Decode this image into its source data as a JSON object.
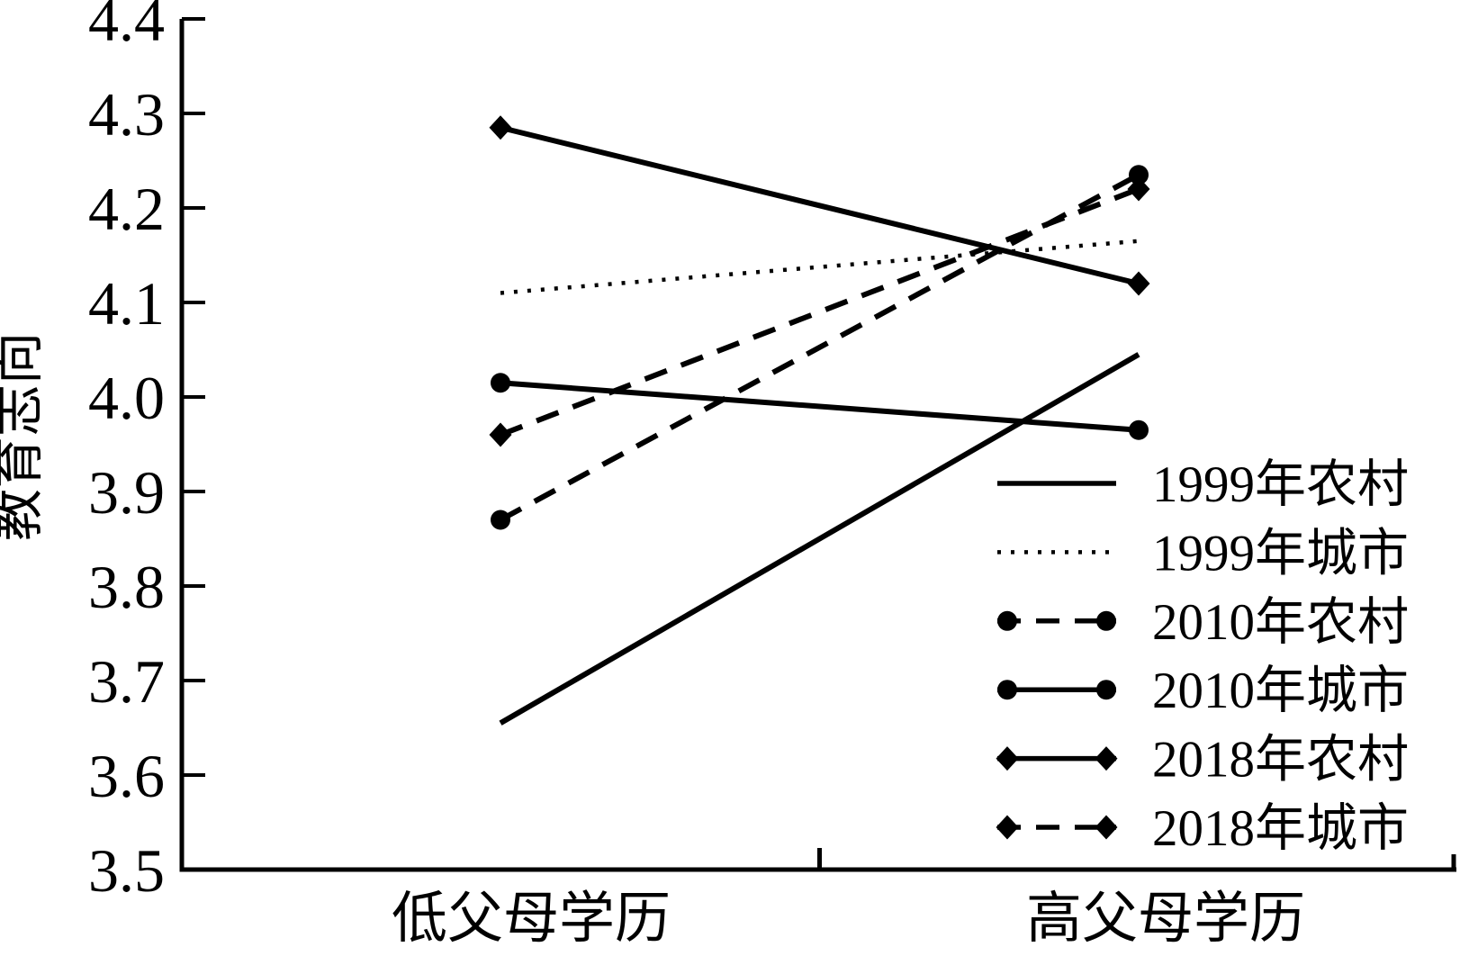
{
  "chart_data": {
    "type": "line",
    "title": "",
    "xlabel": "",
    "ylabel": "教育志向",
    "categories": [
      "低父母学历",
      "高父母学历"
    ],
    "ylim": [
      3.5,
      4.4
    ],
    "ytick_step": 0.1,
    "yticks": [
      "3.5",
      "3.6",
      "3.7",
      "3.8",
      "3.9",
      "4.0",
      "4.1",
      "4.2",
      "4.3",
      "4.4"
    ],
    "grid": false,
    "legend_position": "inside lower right",
    "colors": {
      "foreground": "#000000",
      "background": "#ffffff"
    },
    "series": [
      {
        "name": "1999年农村",
        "line": "solid",
        "marker": "none",
        "values": [
          3.655,
          4.045
        ]
      },
      {
        "name": "1999年城市",
        "line": "dotted",
        "marker": "none",
        "values": [
          4.11,
          4.165
        ]
      },
      {
        "name": "2010年农村",
        "line": "dashed",
        "marker": "circle",
        "values": [
          3.87,
          4.235
        ]
      },
      {
        "name": "2010年城市",
        "line": "solid",
        "marker": "circle",
        "values": [
          4.015,
          3.965
        ]
      },
      {
        "name": "2018年农村",
        "line": "solid",
        "marker": "diamond",
        "values": [
          4.285,
          4.12
        ]
      },
      {
        "name": "2018年城市",
        "line": "dashed",
        "marker": "diamond",
        "values": [
          3.96,
          4.22
        ]
      }
    ]
  }
}
